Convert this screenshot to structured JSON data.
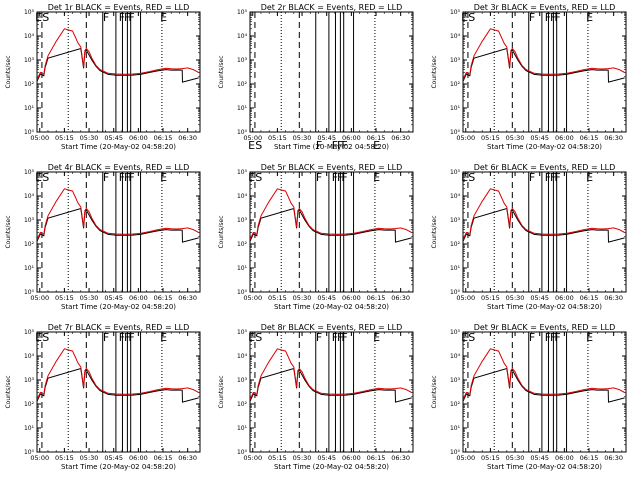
{
  "chart_data": {
    "type": "line",
    "panel_titles": [
      "Det 1r BLACK = Events, RED = LLD",
      "Det 2r BLACK = Events, RED = LLD",
      "Det 3r BLACK = Events, RED = LLD",
      "Det 4r BLACK = Events, RED = LLD",
      "Det 5r BLACK = Events, RED = LLD",
      "Det 6r BLACK = Events, RED = LLD",
      "Det 7r BLACK = Events, RED = LLD",
      "Det 8r BLACK = Events, RED = LLD",
      "Det 9r BLACK = Events, RED = LLD"
    ],
    "xlabel": "Start Time (20-May-02 04:58:20)",
    "ylabel": "Counts/sec",
    "x_tick_labels": [
      "05:00",
      "05:15",
      "05:30",
      "05:45",
      "06:00",
      "06:15",
      "06:30"
    ],
    "x_tick_values_min": [
      100,
      1000,
      1900,
      2800,
      3700,
      4600,
      5500
    ],
    "y_tick_labels": [
      "10⁰",
      "10¹",
      "10²",
      "10³",
      "10⁴",
      "10⁵"
    ],
    "y_tick_values": [
      1,
      10,
      100,
      1000,
      10000,
      100000
    ],
    "xlim_sec": [
      0,
      5950
    ],
    "ylim": [
      1,
      100000
    ],
    "y_scale": "log",
    "legend": "in title",
    "series": [
      {
        "color": "#e00000",
        "role": "LLD",
        "x": [
          0,
          120,
          250,
          300,
          400,
          700,
          1000,
          1300,
          1500,
          1600,
          1700,
          1750,
          1800,
          1900,
          2000,
          2150,
          2300,
          2600,
          2900,
          3200,
          3500,
          3800,
          4100,
          4400,
          4700,
          4900,
          5100,
          5300,
          5500,
          5700,
          5900
        ],
        "y": [
          150,
          300,
          250,
          600,
          1500,
          6000,
          20000,
          16000,
          5000,
          3500,
          500,
          2500,
          3000,
          2200,
          1200,
          600,
          400,
          280,
          260,
          255,
          260,
          280,
          330,
          390,
          450,
          430,
          420,
          440,
          470,
          400,
          300
        ]
      },
      {
        "color": "#000000",
        "role": "Events",
        "x": [
          0,
          120,
          250,
          300,
          400,
          1600,
          1700,
          1750,
          1800,
          2000,
          2150,
          2300,
          2600,
          2900,
          3200,
          3500,
          3800,
          4100,
          4400,
          4700,
          4900,
          5300,
          5310,
          5900
        ],
        "y": [
          130,
          260,
          220,
          500,
          1200,
          3000,
          450,
          2200,
          2600,
          1000,
          550,
          360,
          250,
          230,
          230,
          235,
          255,
          300,
          350,
          400,
          380,
          380,
          120,
          180
        ]
      }
    ],
    "dashed_lines_sec": [
      180,
      1800
    ],
    "dotted_lines_sec": [
      1140,
      4560
    ],
    "solid_lines_sec": [
      2400,
      2880,
      3120,
      3300,
      3420,
      3780
    ],
    "marker_labels": [
      {
        "text": "E",
        "sec": 60
      },
      {
        "text": "S",
        "sec": 320
      },
      {
        "text": "F",
        "sec": 2520
      },
      {
        "text": "F",
        "sec": 3100
      },
      {
        "text": "F",
        "sec": 3290
      },
      {
        "text": "F",
        "sec": 3450
      },
      {
        "text": "E",
        "sec": 4620
      }
    ]
  }
}
